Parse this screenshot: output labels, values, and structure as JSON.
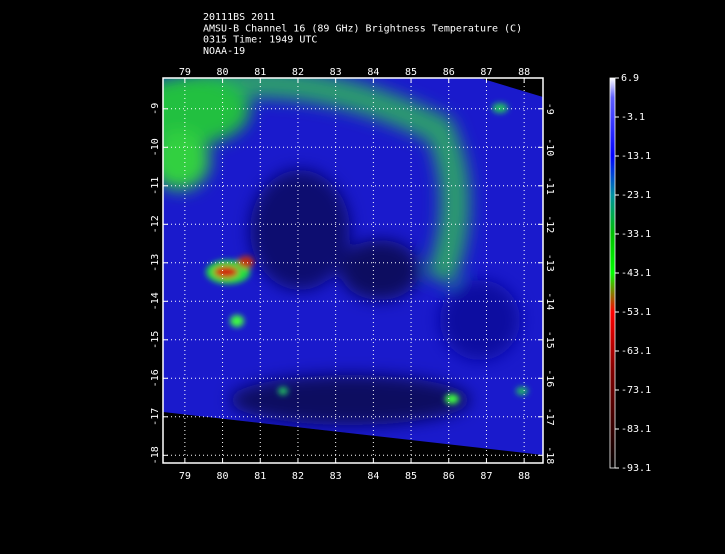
{
  "header": {
    "lines": [
      "20111BS 2011",
      "AMSU-B Channel 16 (89 GHz) Brightness Temperature (C)",
      "0315 Time: 1949 UTC",
      "NOAA-19"
    ]
  },
  "map": {
    "lon_range": [
      78.42,
      88.5
    ],
    "lat_range": [
      -8.2,
      -18.2
    ],
    "lon_ticks": [
      79,
      80,
      81,
      82,
      83,
      84,
      85,
      86,
      87,
      88
    ],
    "lat_ticks": [
      -9,
      -10,
      -11,
      -12,
      -13,
      -14,
      -15,
      -16,
      -17,
      -18
    ],
    "grid": true
  },
  "colorbar": {
    "range": [
      6.9,
      -93.1
    ],
    "ticks": [
      6.9,
      -3.1,
      -13.1,
      -23.1,
      -33.1,
      -43.1,
      -53.1,
      -63.1,
      -73.1,
      -83.1,
      -93.1
    ]
  }
}
